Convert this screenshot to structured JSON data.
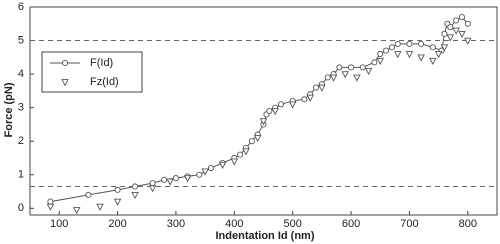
{
  "chart_data": {
    "type": "line",
    "x_label": "Indentation Id (nm)",
    "y_label": "Force (pN)",
    "xlim": [
      50,
      850
    ],
    "ylim": [
      -0.2,
      6
    ],
    "xticks": [
      100,
      200,
      300,
      400,
      500,
      600,
      700,
      800
    ],
    "yticks": [
      0,
      1,
      2,
      3,
      4,
      5,
      6
    ],
    "reference_lines": [
      5,
      0.65
    ],
    "legend": "upper left",
    "series": [
      {
        "name": "F(Id)",
        "color": "#555555",
        "marker": "circle",
        "linestyle": "solid",
        "x": [
          85,
          150,
          200,
          230,
          260,
          280,
          300,
          320,
          340,
          360,
          380,
          400,
          410,
          420,
          430,
          440,
          450,
          455,
          460,
          470,
          480,
          500,
          520,
          530,
          540,
          550,
          560,
          570,
          580,
          600,
          620,
          640,
          650,
          660,
          670,
          680,
          700,
          720,
          740,
          755,
          760,
          765,
          770,
          780,
          790,
          800
        ],
        "values": [
          0.2,
          0.4,
          0.55,
          0.65,
          0.75,
          0.85,
          0.9,
          0.95,
          1.0,
          1.2,
          1.35,
          1.5,
          1.6,
          1.8,
          2.0,
          2.2,
          2.5,
          2.8,
          2.9,
          3.0,
          3.1,
          3.2,
          3.25,
          3.4,
          3.6,
          3.7,
          3.9,
          4.0,
          4.2,
          4.2,
          4.2,
          4.35,
          4.6,
          4.7,
          4.8,
          4.9,
          4.9,
          4.9,
          4.8,
          4.7,
          5.2,
          5.5,
          5.4,
          5.6,
          5.7,
          5.5
        ]
      },
      {
        "name": "Fz(Id)",
        "color": "#555555",
        "marker": "triangle-down",
        "linestyle": "none",
        "x": [
          85,
          130,
          170,
          200,
          230,
          260,
          290,
          320,
          350,
          380,
          400,
          420,
          440,
          450,
          470,
          500,
          530,
          550,
          570,
          590,
          610,
          630,
          650,
          680,
          700,
          720,
          740,
          750,
          760,
          770,
          780,
          790,
          800
        ],
        "values": [
          0.05,
          -0.05,
          0.05,
          0.2,
          0.4,
          0.6,
          0.8,
          0.9,
          1.1,
          1.3,
          1.4,
          1.7,
          2.1,
          2.6,
          2.9,
          3.1,
          3.3,
          3.6,
          3.9,
          4.0,
          3.9,
          4.1,
          4.4,
          4.6,
          4.6,
          4.5,
          4.4,
          4.6,
          4.8,
          5.1,
          5.3,
          5.2,
          5.0
        ]
      }
    ]
  }
}
